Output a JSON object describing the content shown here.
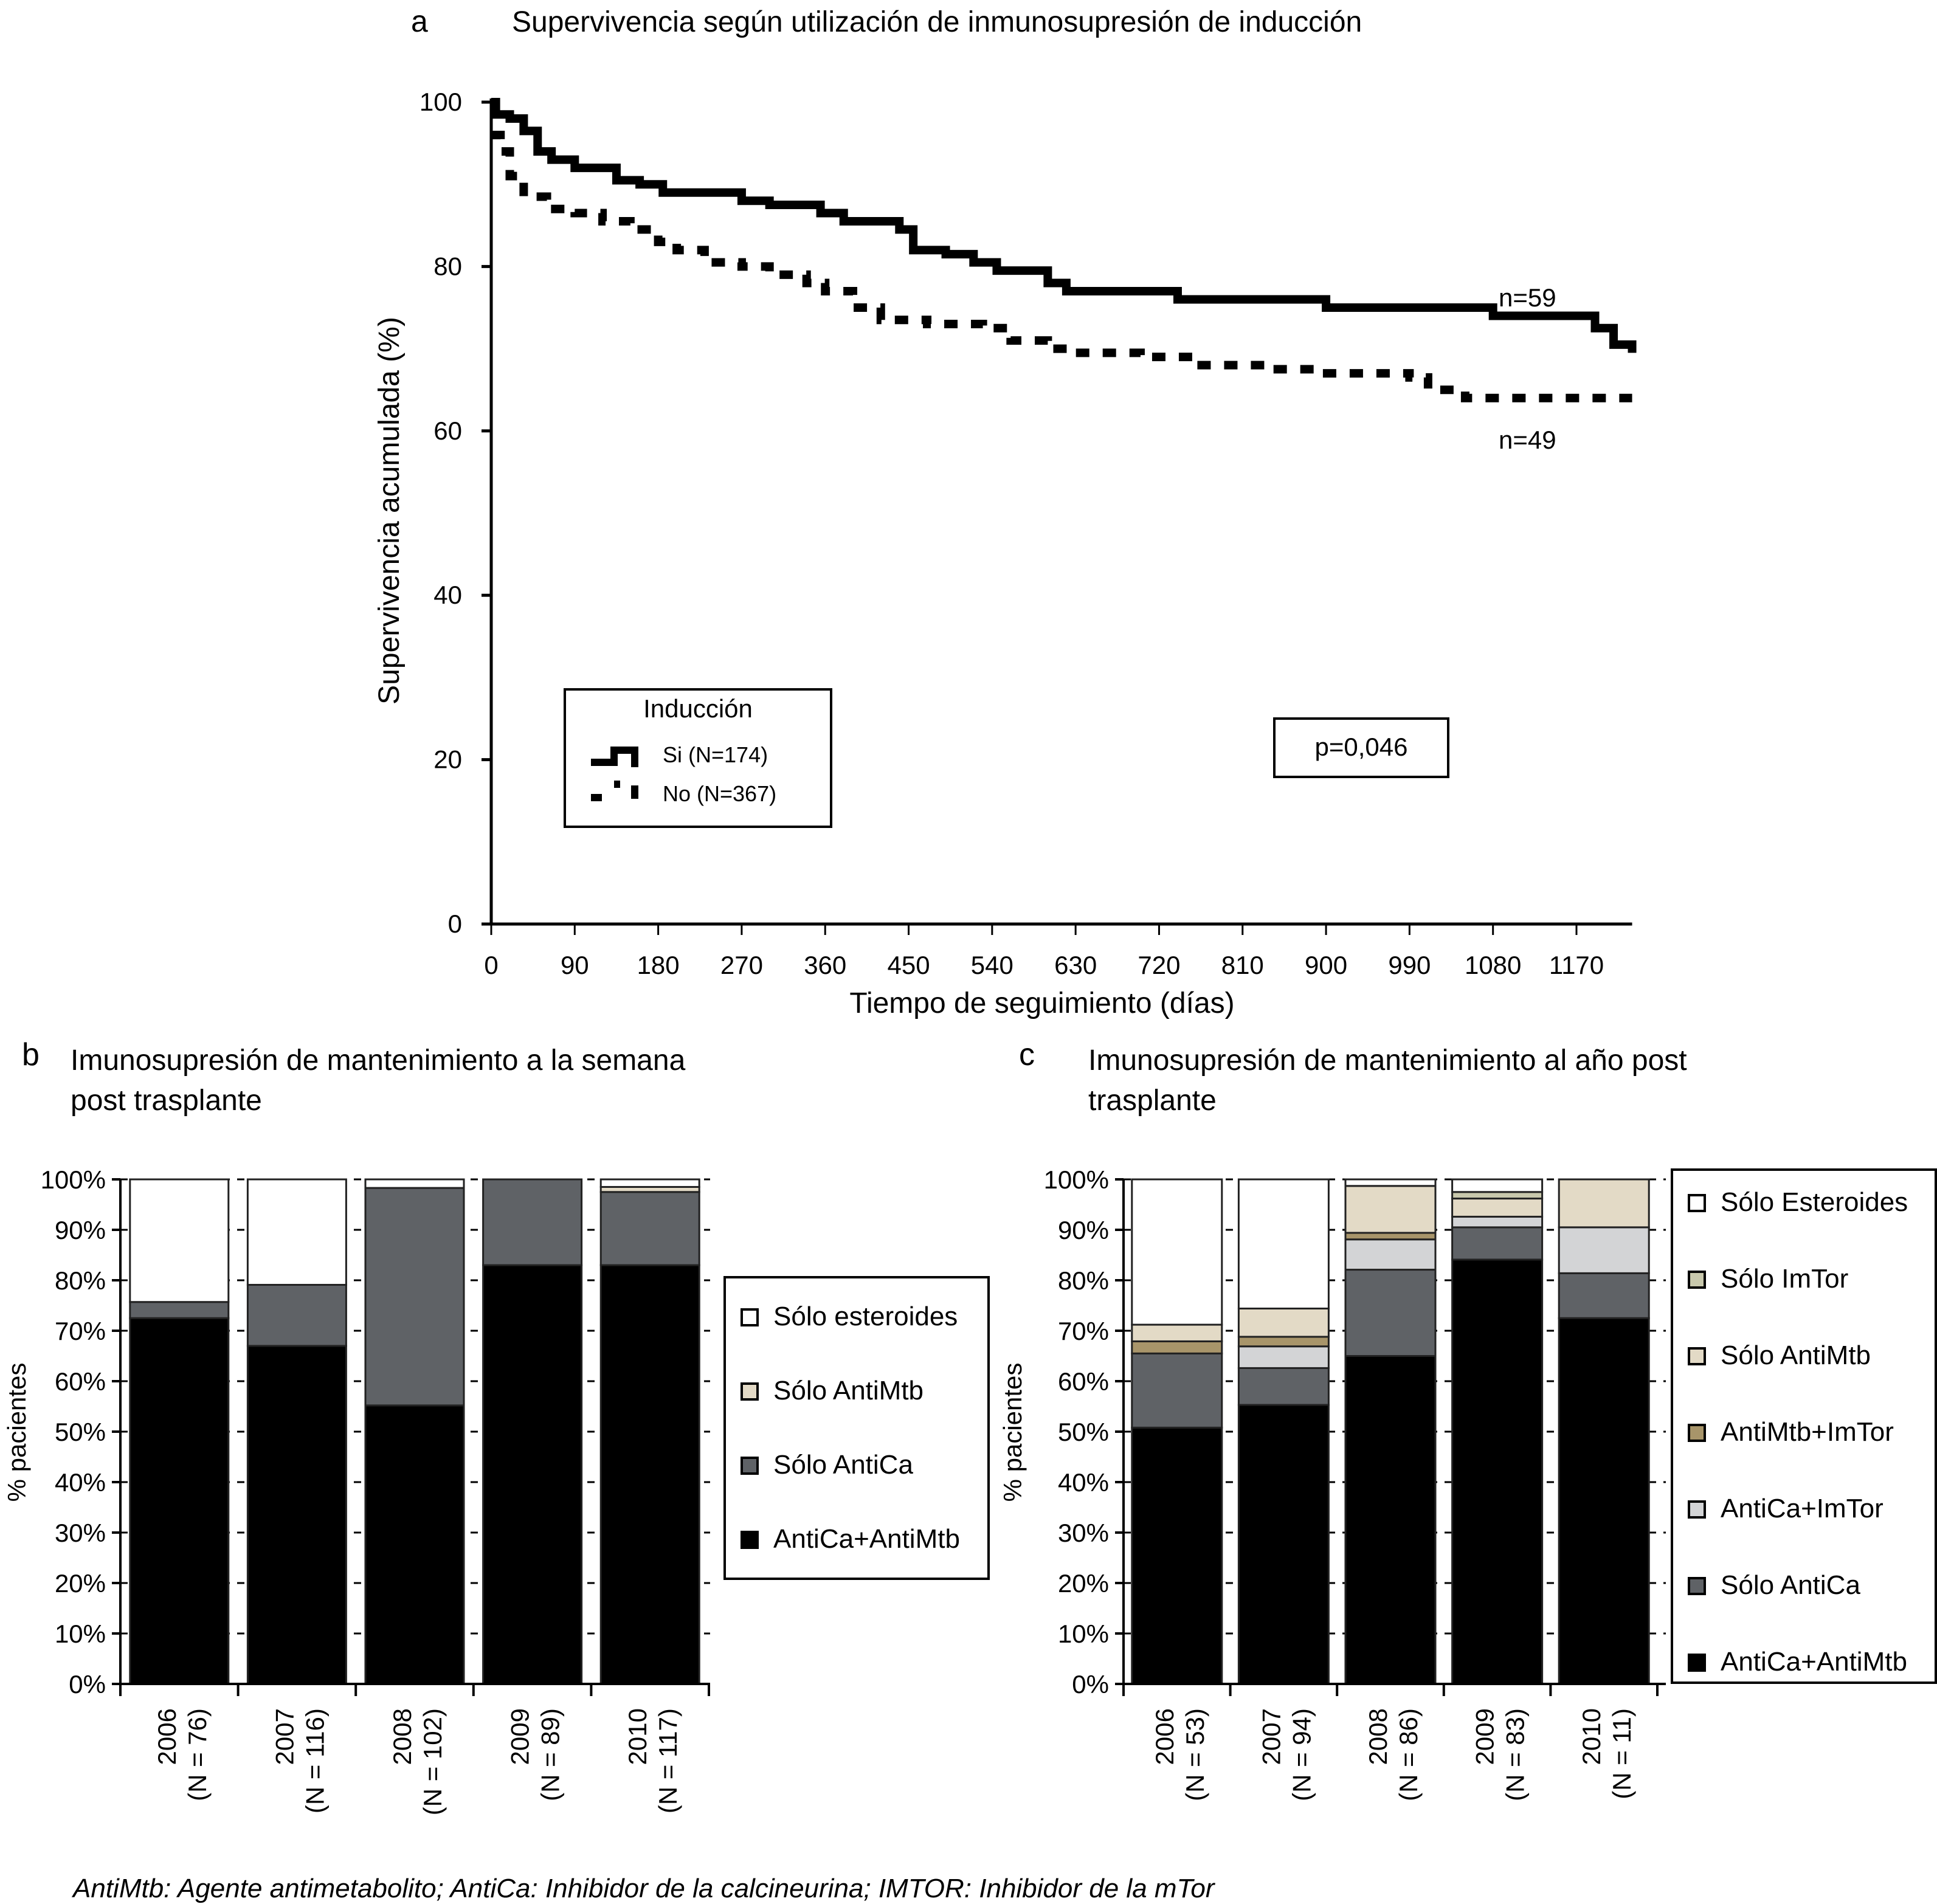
{
  "figure": {
    "caption": "AntiMtb: Agente antimetabolito; AntiCa: Inhibidor de la calcineurina; IMTOR: Inhibidor de la mTor"
  },
  "chart_data": [
    {
      "panel": "a",
      "type": "line",
      "subtype": "kaplan-meier-step",
      "title": "Supervivencia según utilización de inmunosupresión de inducción",
      "xlabel": "Tiempo de seguimiento (días)",
      "ylabel": "Supervivencia acumulada (%)",
      "xlim": [
        0,
        1230
      ],
      "ylim": [
        0,
        100
      ],
      "xticks": [
        0,
        90,
        180,
        270,
        360,
        450,
        540,
        630,
        720,
        810,
        900,
        990,
        1080,
        1170
      ],
      "yticks": [
        0,
        20,
        40,
        60,
        80,
        100
      ],
      "grid": false,
      "legend": {
        "title": "Inducción",
        "placement": "bottom-left",
        "entries": [
          "Si (N=174)",
          "No (N=367)"
        ]
      },
      "annotations": {
        "p_value": "p=0,046",
        "n_si_end": "n=59",
        "n_no_end": "n=49"
      },
      "series": [
        {
          "name": "Si (N=174)",
          "style": "solid",
          "x": [
            0,
            5,
            20,
            35,
            50,
            65,
            90,
            135,
            160,
            185,
            270,
            300,
            355,
            380,
            440,
            455,
            490,
            520,
            545,
            600,
            620,
            740,
            900,
            1080,
            1190,
            1210,
            1230
          ],
          "y": [
            100,
            98.5,
            98,
            96.5,
            94,
            93,
            92,
            90.5,
            90,
            89,
            88,
            87.5,
            86.5,
            85.5,
            84.5,
            82,
            81.5,
            80.5,
            79.5,
            78,
            77,
            76,
            75,
            74,
            72.5,
            70.5,
            69.5
          ]
        },
        {
          "name": "No (N=367)",
          "style": "dashed",
          "x": [
            0,
            10,
            20,
            35,
            60,
            90,
            120,
            150,
            180,
            200,
            230,
            270,
            300,
            340,
            360,
            390,
            420,
            470,
            530,
            560,
            600,
            630,
            700,
            760,
            840,
            890,
            990,
            1010,
            1050,
            1230
          ],
          "y": [
            96,
            94,
            91,
            88.5,
            87,
            86.5,
            85.5,
            84.5,
            83,
            82,
            80.5,
            80,
            79,
            78,
            77,
            75,
            73.5,
            73,
            72.5,
            71,
            70,
            69.5,
            69,
            68,
            67.5,
            67,
            66.5,
            65,
            64,
            64
          ]
        }
      ]
    },
    {
      "panel": "b",
      "type": "bar",
      "subtype": "stacked-100",
      "title": "Imunosupresión de mantenimiento a la semana post trasplante",
      "ylabel": "% pacientes",
      "ylim": [
        0,
        100
      ],
      "yticks": [
        "0%",
        "10%",
        "20%",
        "30%",
        "40%",
        "50%",
        "60%",
        "70%",
        "80%",
        "90%",
        "100%"
      ],
      "grid": true,
      "legend": {
        "placement": "right"
      },
      "categories": [
        {
          "year": "2006",
          "n": "(N = 76)"
        },
        {
          "year": "2007",
          "n": "(N = 116)"
        },
        {
          "year": "2008",
          "n": "(N = 102)"
        },
        {
          "year": "2009",
          "n": "(N = 89)"
        },
        {
          "year": "2010",
          "n": "(N = 117)"
        }
      ],
      "series": [
        {
          "name": "AntiCa+AntiMtb",
          "color": "#000000",
          "values": [
            72.5,
            67.0,
            55.2,
            83.0,
            83.0
          ]
        },
        {
          "name": "Sólo AntiCa",
          "color": "#5f6266",
          "values": [
            3.2,
            12.1,
            43.1,
            17.0,
            14.5
          ]
        },
        {
          "name": "Sólo AntiMtb",
          "color": "#e3dac6",
          "values": [
            0,
            0,
            0,
            0,
            1.0
          ]
        },
        {
          "name": "Sólo esteroides",
          "color": "#ffffff",
          "values": [
            24.3,
            20.9,
            1.7,
            0,
            1.5
          ]
        }
      ],
      "legend_order": [
        "Sólo esteroides",
        "Sólo AntiMtb",
        "Sólo AntiCa",
        "AntiCa+AntiMtb"
      ]
    },
    {
      "panel": "c",
      "type": "bar",
      "subtype": "stacked-100",
      "title": "Imunosupresión de mantenimiento al año post trasplante",
      "ylabel": "% pacientes",
      "ylim": [
        0,
        100
      ],
      "yticks": [
        "0%",
        "10%",
        "20%",
        "30%",
        "40%",
        "50%",
        "60%",
        "70%",
        "80%",
        "90%",
        "100%"
      ],
      "grid": true,
      "legend": {
        "placement": "right"
      },
      "categories": [
        {
          "year": "2006",
          "n": "(N = 53)"
        },
        {
          "year": "2007",
          "n": "(N = 94)"
        },
        {
          "year": "2008",
          "n": "(N = 86)"
        },
        {
          "year": "2009",
          "n": "(N = 83)"
        },
        {
          "year": "2010",
          "n": "(N = 11)"
        }
      ],
      "series": [
        {
          "name": "AntiCa+AntiMtb",
          "color": "#000000",
          "values": [
            50.8,
            55.3,
            65.0,
            84.1,
            72.5
          ]
        },
        {
          "name": "Sólo AntiCa",
          "color": "#5f6266",
          "values": [
            14.7,
            7.3,
            17.1,
            6.4,
            8.9
          ]
        },
        {
          "name": "AntiCa+ImTor",
          "color": "#d3d4d6",
          "values": [
            0,
            4.3,
            6.0,
            2.1,
            9.1
          ]
        },
        {
          "name": "AntiMtb+ImTor",
          "color": "#a8956a",
          "values": [
            2.4,
            1.9,
            1.3,
            0,
            0
          ]
        },
        {
          "name": "Sólo AntiMtb",
          "color": "#e3dac6",
          "values": [
            3.3,
            5.6,
            9.3,
            3.6,
            9.5
          ]
        },
        {
          "name": "Sólo ImTor",
          "color": "#c8c8ac",
          "values": [
            0,
            0,
            0,
            1.3,
            0
          ]
        },
        {
          "name": "Sólo Esteroides",
          "color": "#ffffff",
          "values": [
            28.8,
            25.6,
            1.3,
            2.5,
            0
          ]
        }
      ],
      "legend_order": [
        "Sólo Esteroides",
        "Sólo ImTor",
        "Sólo AntiMtb",
        "AntiMtb+ImTor",
        "AntiCa+ImTor",
        "Sólo AntiCa",
        "AntiCa+AntiMtb"
      ]
    }
  ]
}
